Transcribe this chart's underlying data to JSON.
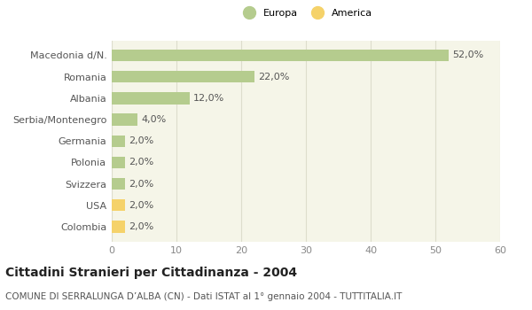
{
  "categories": [
    "Colombia",
    "USA",
    "Svizzera",
    "Polonia",
    "Germania",
    "Serbia/Montenegro",
    "Albania",
    "Romania",
    "Macedonia d/N."
  ],
  "values": [
    2.0,
    2.0,
    2.0,
    2.0,
    2.0,
    4.0,
    12.0,
    22.0,
    52.0
  ],
  "labels": [
    "2,0%",
    "2,0%",
    "2,0%",
    "2,0%",
    "2,0%",
    "4,0%",
    "12,0%",
    "22,0%",
    "52,0%"
  ],
  "colors": [
    "#f5d26a",
    "#f5d26a",
    "#b5cc8e",
    "#b5cc8e",
    "#b5cc8e",
    "#b5cc8e",
    "#b5cc8e",
    "#b5cc8e",
    "#b5cc8e"
  ],
  "legend": [
    {
      "label": "Europa",
      "color": "#b5cc8e"
    },
    {
      "label": "America",
      "color": "#f5d26a"
    }
  ],
  "xlim": [
    0,
    60
  ],
  "xticks": [
    0,
    10,
    20,
    30,
    40,
    50,
    60
  ],
  "title": "Cittadini Stranieri per Cittadinanza - 2004",
  "subtitle": "COMUNE DI SERRALUNGA D’ALBA (CN) - Dati ISTAT al 1° gennaio 2004 - TUTTITALIA.IT",
  "bg_color": "#ffffff",
  "plot_bg_color": "#f5f5e8",
  "grid_color": "#ddddcc",
  "bar_edge_color": "none",
  "title_fontsize": 10,
  "subtitle_fontsize": 7.5,
  "label_fontsize": 8,
  "tick_fontsize": 8
}
